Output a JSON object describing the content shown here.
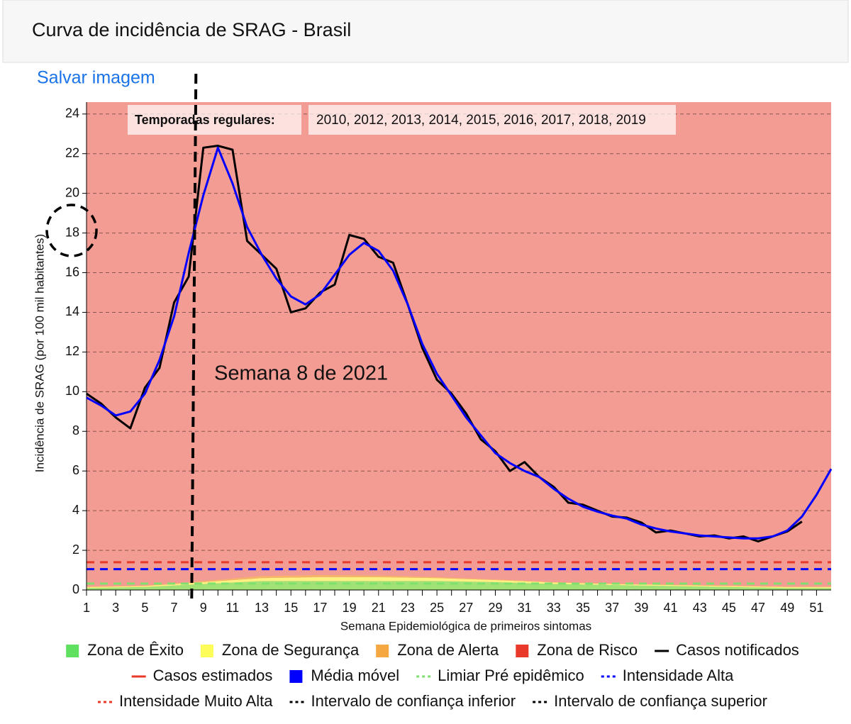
{
  "header": {
    "title": "Curva de incidência de SRAG - Brasil",
    "link": "Salvar imagem"
  },
  "chart_data": {
    "type": "line",
    "ylabel": "Incidência de SRAG (por 100 mil habitantes)",
    "xlabel": "Semana Epidemiológica de primeiros sintomas",
    "xlim": [
      1,
      52
    ],
    "xticks": [
      1,
      3,
      5,
      7,
      9,
      11,
      13,
      15,
      17,
      19,
      21,
      23,
      25,
      27,
      29,
      31,
      33,
      35,
      37,
      39,
      41,
      43,
      45,
      47,
      49,
      51
    ],
    "ylim": [
      0,
      24.6
    ],
    "yticks": [
      0,
      2,
      4,
      6,
      8,
      10,
      12,
      14,
      16,
      18,
      20,
      22,
      24
    ],
    "grid": true,
    "x": [
      1,
      2,
      3,
      4,
      5,
      6,
      7,
      8,
      9,
      10,
      11,
      12,
      13,
      14,
      15,
      16,
      17,
      18,
      19,
      20,
      21,
      22,
      23,
      24,
      25,
      26,
      27,
      28,
      29,
      30,
      31,
      32,
      33,
      34,
      35,
      36,
      37,
      38,
      39,
      40,
      41,
      42,
      43,
      44,
      45,
      46,
      47,
      48,
      49,
      50,
      51,
      52
    ],
    "series": [
      {
        "name": "Casos notificados",
        "color": "#000000",
        "values": [
          9.9,
          9.4,
          8.7,
          8.15,
          10.2,
          11.2,
          14.5,
          15.8,
          22.3,
          22.4,
          22.2,
          17.6,
          16.9,
          16.2,
          14.0,
          14.2,
          15.0,
          15.4,
          17.9,
          17.7,
          16.8,
          16.5,
          14.4,
          12.2,
          10.6,
          9.9,
          8.9,
          7.6,
          7.0,
          6.0,
          6.45,
          5.7,
          5.2,
          4.4,
          4.3,
          4.0,
          3.7,
          3.65,
          3.4,
          2.9,
          3.0,
          2.85,
          2.7,
          2.75,
          2.6,
          2.7,
          2.45,
          2.7,
          2.95,
          3.45,
          null,
          null
        ]
      },
      {
        "name": "Média móvel",
        "color": "#0000ff",
        "values": [
          9.7,
          9.3,
          8.8,
          9.0,
          9.9,
          11.6,
          13.8,
          17.0,
          19.9,
          22.3,
          20.5,
          18.3,
          16.9,
          15.7,
          14.8,
          14.4,
          14.9,
          15.9,
          16.9,
          17.5,
          17.1,
          16.1,
          14.4,
          12.4,
          10.9,
          9.8,
          8.7,
          7.8,
          6.9,
          6.4,
          6.0,
          5.7,
          5.1,
          4.6,
          4.2,
          3.95,
          3.75,
          3.6,
          3.3,
          3.1,
          2.95,
          2.85,
          2.75,
          2.7,
          2.65,
          2.6,
          2.6,
          2.7,
          3.0,
          3.7,
          4.8,
          6.1
        ]
      }
    ],
    "zones": {
      "x": [
        1,
        5,
        9,
        13,
        17,
        21,
        25,
        29,
        33,
        37,
        41,
        45,
        49,
        52
      ],
      "risk_color": "#e8392a",
      "layers": [
        {
          "color": "#90ee70",
          "values": [
            0.1,
            0.15,
            0.3,
            0.45,
            0.45,
            0.45,
            0.45,
            0.4,
            0.3,
            0.25,
            0.2,
            0.15,
            0.1,
            0.1
          ]
        },
        {
          "color": "#ffff80",
          "values": [
            0.05,
            0.05,
            0.1,
            0.15,
            0.2,
            0.2,
            0.15,
            0.1,
            0.08,
            0.05,
            0.05,
            0.05,
            0.05,
            0.05
          ]
        },
        {
          "color": "#f4b860",
          "values": [
            0.02,
            0.02,
            0.05,
            0.1,
            0.1,
            0.08,
            0.05,
            0.03,
            0.02,
            0.02,
            0.02,
            0.02,
            0.02,
            0.02
          ]
        }
      ]
    },
    "thresholds": [
      {
        "value": 1.4,
        "color": "#e8392a"
      },
      {
        "value": 1.05,
        "color": "#0000ff"
      },
      {
        "value": 0.32,
        "color": "#7fe06f"
      }
    ],
    "annotations": {
      "seasons_label": "Temporadas regulares:",
      "seasons": "2010, 2012, 2013, 2014, 2015, 2016, 2017, 2018, 2019",
      "week_text": "Semana 8 de 2021",
      "vline_x": 8.3
    },
    "legend": [
      {
        "name": "Zona de Êxito",
        "color": "#5fe05f",
        "symbol": "square"
      },
      {
        "name": "Zona de Segurança",
        "color": "#fdfd5a",
        "symbol": "square"
      },
      {
        "name": "Zona de Alerta",
        "color": "#f5a742",
        "symbol": "square"
      },
      {
        "name": "Zona de Risco",
        "color": "#e8392a",
        "symbol": "square"
      },
      {
        "name": "Casos notificados",
        "color": "#000000",
        "symbol": "line"
      },
      {
        "name": "Casos estimados",
        "color": "#e8392a",
        "symbol": "line"
      },
      {
        "name": "Média móvel",
        "color": "#0000ff",
        "symbol": "square"
      },
      {
        "name": "Limiar Pré epidêmico",
        "color": "#7fe06f",
        "symbol": "dotted"
      },
      {
        "name": "Intensidade Alta",
        "color": "#0000ff",
        "symbol": "dotted"
      },
      {
        "name": "Intensidade Muito Alta",
        "color": "#e8392a",
        "symbol": "dotted"
      },
      {
        "name": "Intervalo de confiança inferior",
        "color": "#000000",
        "symbol": "dotted"
      },
      {
        "name": "Intervalo de confiança superior",
        "color": "#000000",
        "symbol": "dotted"
      }
    ]
  }
}
